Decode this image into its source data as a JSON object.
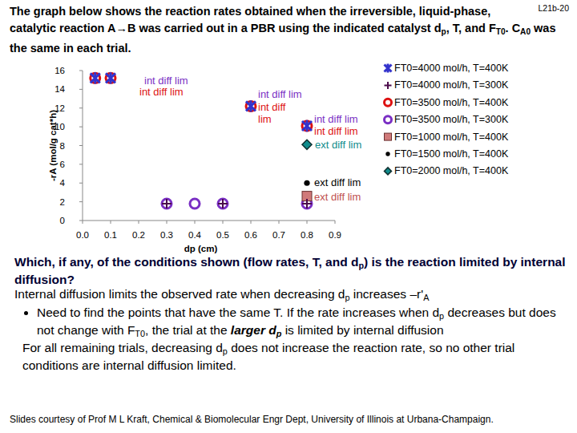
{
  "header": {
    "label": "L21b-20",
    "intro": [
      "The graph below shows the reaction rates obtained when the irreversible, liquid-phase, catalytic reaction A→B was carried out in a PBR using the indicated catalyst d",
      {
        "text": "p",
        "style": "sub"
      },
      ", T, and F",
      {
        "text": "T0",
        "style": "sub"
      },
      ". C",
      {
        "text": "A0",
        "style": "sub"
      },
      " was the same in each trial."
    ]
  },
  "chart_data": {
    "type": "scatter",
    "x_label": "dp (cm)",
    "y_label": "-rA (mol/g cat*h)",
    "xlim": [
      0,
      0.9
    ],
    "ylim": [
      0,
      16
    ],
    "xticks": [
      {
        "value": 0,
        "label": "0.0"
      },
      0.1,
      0.2,
      0.3,
      0.4,
      0.5,
      0.6,
      0.7,
      0.8,
      0.9
    ],
    "yticks": [
      0,
      2,
      4,
      6,
      8,
      10,
      12,
      14,
      16
    ],
    "grid": false,
    "legend": "right",
    "series": [
      {
        "name": "FT0=4000 mol/h, T=400K",
        "color": "#3333cc",
        "marker": "star",
        "x": [
          0.045,
          0.1,
          0.6,
          0.8
        ],
        "values": [
          15.2,
          15.2,
          12.2,
          10.1
        ]
      },
      {
        "name": "FT0=4000 mol/h, T=300K",
        "color": "#4b0b4b",
        "marker": "plus",
        "x": [
          0.3,
          0.5,
          0.8
        ],
        "values": [
          1.8,
          1.8,
          1.8
        ]
      },
      {
        "name": "FT0=3500 mol/h, T=400K",
        "color": "#dd1111",
        "marker": "circle",
        "x": [
          0.045,
          0.1,
          0.6,
          0.8
        ],
        "values": [
          15.2,
          15.2,
          12.2,
          10.1
        ]
      },
      {
        "name": "FT0=3500 mol/h, T=300K",
        "color": "#7a2fc4",
        "marker": "circle",
        "x": [
          0.3,
          0.4,
          0.5,
          0.8
        ],
        "values": [
          1.8,
          1.8,
          1.8,
          1.8
        ]
      },
      {
        "name": "FT0=1000 mol/h, T=400K",
        "color": "#d07a7a",
        "marker": "square",
        "x": [
          0.8
        ],
        "values": [
          2.6
        ]
      },
      {
        "name": "FT0=1500 mol/h, T=400K",
        "color": "#000000",
        "marker": "dot",
        "x": [
          0.8
        ],
        "values": [
          4.0
        ]
      },
      {
        "name": "FT0=2000 mol/h, T=400K",
        "color": "#0f8c8c",
        "marker": "diamond",
        "x": [
          0.8
        ],
        "values": [
          8.1
        ]
      }
    ],
    "annotations": [
      {
        "text": "int diff lim",
        "color": "#7a2fc4"
      },
      {
        "text": "int diff lim",
        "color": "#dd1111"
      },
      {
        "text": "int diff lim",
        "color": "#7a2fc4"
      },
      {
        "text": "int diff lim",
        "color": "#dd1111"
      },
      {
        "text": "int diff lim",
        "color": "#7a2fc4"
      },
      {
        "text": "int diff lim",
        "color": "#dd1111"
      },
      {
        "text": "ext diff lim",
        "color": "#0f8c8c"
      },
      {
        "text": "ext diff lim",
        "color": "#000000"
      },
      {
        "text": "ext diff lim",
        "color": "#c05050"
      }
    ]
  },
  "text": {
    "question": [
      "Which, if any, of the conditions shown (flow rates, T, and d",
      {
        "text": "p",
        "style": "sub"
      },
      ") is the reaction limited by internal diffusion?"
    ],
    "explanation": [
      "Internal diffusion limits the observed rate when decreasing d",
      {
        "text": "p",
        "style": "sub"
      },
      " increases –r'",
      {
        "text": "A",
        "style": "sub"
      }
    ],
    "bullet": [
      "Need to find the points that have the same T. If the rate increases when d",
      {
        "text": "p",
        "style": "sub"
      },
      " decreases but does not change with F",
      {
        "text": "T0",
        "style": "sub"
      },
      ", the trial at the ",
      {
        "text": "larger d",
        "style": "bold-italic"
      },
      {
        "text": "p",
        "style": "bold-italic-sub"
      },
      " is limited by internal diffusion"
    ],
    "conclusion": [
      "For all remaining trials, decreasing d",
      {
        "text": "p",
        "style": "sub"
      },
      " does not increase the reaction rate, so no other trial conditions are internal diffusion limited."
    ]
  },
  "footer": "Slides courtesy of Prof M L Kraft, Chemical & Biomolecular Engr Dept, University of Illinois at Urbana-Champaign."
}
